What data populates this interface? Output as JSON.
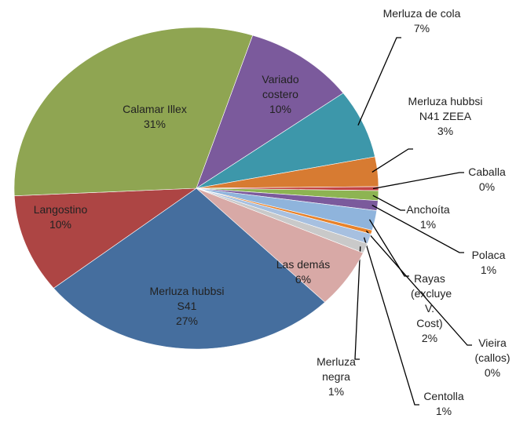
{
  "chart_data": {
    "type": "pie",
    "categories": [
      "Variado costero",
      "Merluza de cola",
      "Merluza hubbsi N41 ZEEA",
      "Caballa",
      "Anchoíta",
      "Polaca",
      "Rayas (excluye V. Cost)",
      "Vieira (callos)",
      "Centolla",
      "Merluza negra",
      "Las demás",
      "Merluza hubbsi S41",
      "Langostino",
      "Calamar Illex"
    ],
    "values": [
      10,
      7,
      3,
      0.4,
      1,
      1,
      2,
      0.4,
      1,
      1,
      6,
      27,
      10,
      31
    ],
    "value_labels": [
      "10%",
      "7%",
      "3%",
      "0%",
      "1%",
      "1%",
      "2%",
      "0%",
      "1%",
      "1%",
      "6%",
      "27%",
      "10%",
      "31%"
    ],
    "colors": [
      "#7b5a9c",
      "#3d97aa",
      "#d77b32",
      "#c24545",
      "#8db452",
      "#7b5a9c",
      "#8fb4dc",
      "#e8822a",
      "#a7c0e0",
      "#c9c9c9",
      "#d8a9a6",
      "#456e9e",
      "#ad4544",
      "#8fa552"
    ]
  }
}
